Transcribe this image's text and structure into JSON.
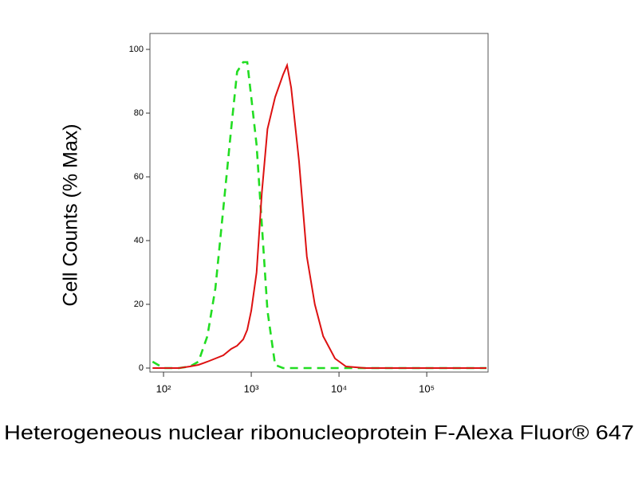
{
  "chart_data": {
    "type": "line",
    "x_label": "Heterogeneous nuclear ribonucleoprotein F-Alexa Fluor® 647",
    "y_label": "Cell Counts (% Max)",
    "x": [
      75,
      100,
      150,
      200,
      250,
      316,
      390,
      480,
      590,
      690,
      810,
      900,
      1000,
      1150,
      1320,
      1530,
      1870,
      2300,
      2560,
      2850,
      3500,
      4300,
      5300,
      6600,
      9000,
      12000,
      20000,
      50000,
      100000,
      300000,
      480000
    ],
    "series": [
      {
        "color": "#22dd22",
        "linestyle": "dashed",
        "values": [
          2,
          0,
          0,
          0.5,
          2,
          10,
          25,
          50,
          75,
          93,
          96,
          96,
          85,
          70,
          45,
          18,
          1,
          0,
          0,
          0,
          0,
          0,
          0,
          0,
          0,
          0,
          0,
          0,
          0,
          0,
          0
        ]
      },
      {
        "color": "#dd1111",
        "linestyle": "solid",
        "values": [
          0,
          0,
          0,
          0.5,
          1,
          2,
          3,
          4,
          6,
          7,
          9,
          12,
          18,
          30,
          55,
          75,
          85,
          92,
          95,
          88,
          65,
          35,
          20,
          10,
          3,
          0.5,
          0,
          0,
          0,
          0,
          0
        ]
      }
    ],
    "xscale": "log",
    "xlim": [
      70,
      500000
    ],
    "xticks": [
      {
        "value": 100,
        "label": "10²"
      },
      {
        "value": 1000,
        "label": "10³"
      },
      {
        "value": 10000,
        "label": "10⁴"
      },
      {
        "value": 100000,
        "label": "10⁵"
      }
    ],
    "ylim": [
      -1.25,
      105
    ],
    "yticks": [
      0,
      20,
      40,
      60,
      80,
      100
    ]
  }
}
